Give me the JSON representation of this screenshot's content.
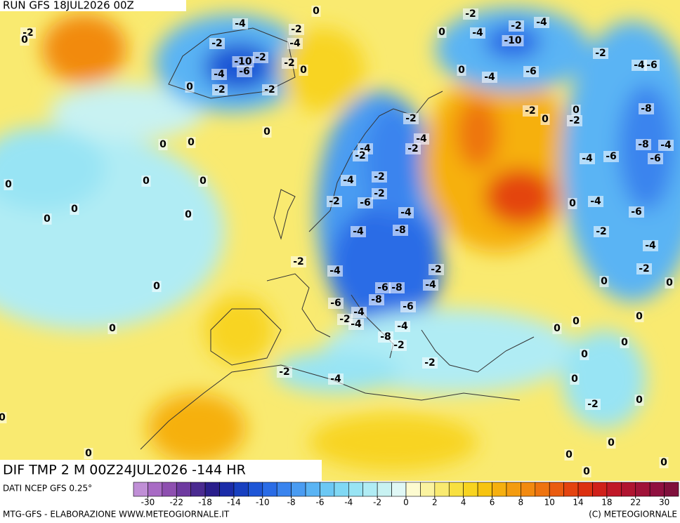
{
  "header": {
    "run": "RUN GFS 18JUL2026 00Z"
  },
  "map": {
    "title": "DIF TMP 2 M 00Z24JUL2026 -144 HR",
    "contour_labels": [
      -2,
      0,
      0,
      -4,
      -2,
      -2,
      -4,
      -10,
      -2,
      -2,
      -4,
      -6,
      0,
      0,
      -2,
      -2,
      -2,
      -2,
      -4,
      0,
      -4,
      -10,
      -2,
      -4,
      -6,
      0,
      -4,
      -6,
      -2,
      0,
      -2,
      0,
      -8,
      -8,
      -4,
      -6,
      -4,
      -6,
      0,
      -2,
      -4,
      -2,
      -4,
      -2,
      0,
      0,
      -2,
      -4,
      0,
      0,
      0,
      -2,
      -6,
      -2,
      0,
      0,
      0,
      -4,
      0,
      -4,
      -6,
      -8,
      -4,
      -2,
      -4,
      -2,
      -4,
      -2,
      -2,
      -4,
      0,
      0,
      -6,
      -8,
      -8,
      -6,
      -6,
      -4,
      -2,
      -4,
      -4,
      0,
      0,
      0,
      0,
      0,
      -8,
      -2,
      0,
      0,
      -2,
      -2,
      -4,
      0,
      -2,
      0,
      0,
      0,
      0,
      0,
      0,
      0
    ]
  },
  "legend": {
    "source": "DATI NCEP GFS 0.25°",
    "ticks": [
      -30,
      -22,
      -18,
      -14,
      -10,
      -8,
      -6,
      -4,
      -2,
      0,
      2,
      4,
      6,
      8,
      10,
      14,
      18,
      22,
      30
    ],
    "colors": [
      "#c08fd6",
      "#a86bc4",
      "#8e4fb0",
      "#6e3aa0",
      "#4a2a90",
      "#2a1e8c",
      "#1b2ca8",
      "#1840c0",
      "#1e56d6",
      "#2a6ce6",
      "#3a84ee",
      "#4a9cf2",
      "#5ab4f4",
      "#6cc8f4",
      "#80d8f4",
      "#98e4f4",
      "#b0ecf4",
      "#c8f2f2",
      "#e0f8f6",
      "#fdfbd0",
      "#fbf3a0",
      "#f9ea70",
      "#f8e040",
      "#f8d420",
      "#f7c410",
      "#f6b010",
      "#f49c10",
      "#f28a10",
      "#ee7410",
      "#ea5c10",
      "#e44410",
      "#dc3010",
      "#d0201a",
      "#c01828",
      "#b01430",
      "#a01238",
      "#901040",
      "#80103c"
    ]
  },
  "footer": {
    "left": "MTG-GFS - ELABORAZIONE WWW.METEOGIORNALE.IT",
    "right": "(C) METEOGIORNALE"
  }
}
